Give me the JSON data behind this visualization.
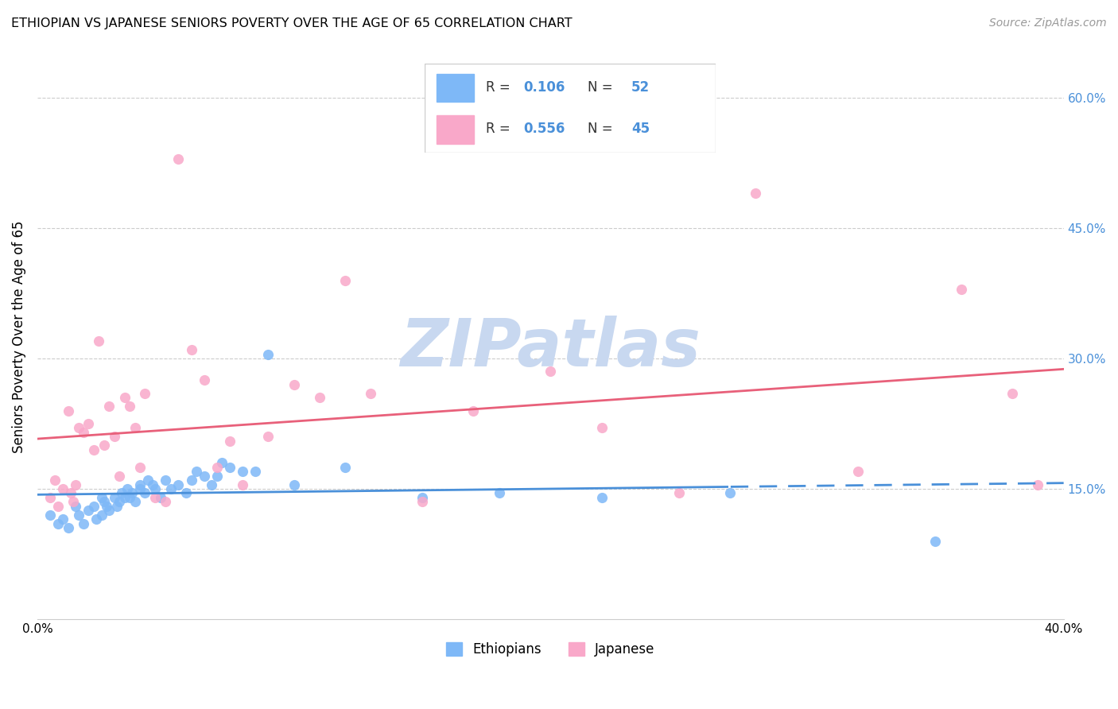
{
  "title": "ETHIOPIAN VS JAPANESE SENIORS POVERTY OVER THE AGE OF 65 CORRELATION CHART",
  "source": "Source: ZipAtlas.com",
  "ylabel": "Seniors Poverty Over the Age of 65",
  "xlabel_ethiopians": "Ethiopians",
  "xlabel_japanese": "Japanese",
  "xmin": 0.0,
  "xmax": 0.4,
  "ymin": 0.0,
  "ymax": 0.65,
  "yticks": [
    0.15,
    0.3,
    0.45,
    0.6
  ],
  "ytick_labels": [
    "15.0%",
    "30.0%",
    "45.0%",
    "60.0%"
  ],
  "ethiopian_color": "#7eb8f7",
  "japanese_color": "#f9a8c9",
  "ethiopian_line_color": "#4a90d9",
  "japanese_line_color": "#e8607a",
  "watermark": "ZIPatlas",
  "watermark_color": "#c8d8f0",
  "legend_value_color": "#4a90d9",
  "legend_label_color": "#333333",
  "source_color": "#999999",
  "ethiopians_x": [
    0.005,
    0.008,
    0.01,
    0.012,
    0.015,
    0.016,
    0.018,
    0.02,
    0.022,
    0.023,
    0.025,
    0.025,
    0.026,
    0.027,
    0.028,
    0.03,
    0.031,
    0.032,
    0.033,
    0.034,
    0.035,
    0.036,
    0.037,
    0.038,
    0.04,
    0.04,
    0.042,
    0.043,
    0.045,
    0.046,
    0.048,
    0.05,
    0.052,
    0.055,
    0.058,
    0.06,
    0.062,
    0.065,
    0.068,
    0.07,
    0.072,
    0.075,
    0.08,
    0.085,
    0.09,
    0.1,
    0.12,
    0.15,
    0.18,
    0.22,
    0.27,
    0.35
  ],
  "ethiopians_y": [
    0.12,
    0.11,
    0.115,
    0.105,
    0.13,
    0.12,
    0.11,
    0.125,
    0.13,
    0.115,
    0.14,
    0.12,
    0.135,
    0.13,
    0.125,
    0.14,
    0.13,
    0.135,
    0.145,
    0.14,
    0.15,
    0.14,
    0.145,
    0.135,
    0.155,
    0.15,
    0.145,
    0.16,
    0.155,
    0.15,
    0.14,
    0.16,
    0.15,
    0.155,
    0.145,
    0.16,
    0.17,
    0.165,
    0.155,
    0.165,
    0.18,
    0.175,
    0.17,
    0.17,
    0.305,
    0.155,
    0.175,
    0.14,
    0.145,
    0.14,
    0.145,
    0.09
  ],
  "japanese_x": [
    0.005,
    0.007,
    0.008,
    0.01,
    0.012,
    0.013,
    0.014,
    0.015,
    0.016,
    0.018,
    0.02,
    0.022,
    0.024,
    0.026,
    0.028,
    0.03,
    0.032,
    0.034,
    0.036,
    0.038,
    0.04,
    0.042,
    0.046,
    0.05,
    0.055,
    0.06,
    0.065,
    0.07,
    0.075,
    0.08,
    0.09,
    0.1,
    0.11,
    0.12,
    0.13,
    0.15,
    0.17,
    0.2,
    0.22,
    0.25,
    0.28,
    0.32,
    0.36,
    0.38,
    0.39
  ],
  "japanese_y": [
    0.14,
    0.16,
    0.13,
    0.15,
    0.24,
    0.145,
    0.135,
    0.155,
    0.22,
    0.215,
    0.225,
    0.195,
    0.32,
    0.2,
    0.245,
    0.21,
    0.165,
    0.255,
    0.245,
    0.22,
    0.175,
    0.26,
    0.14,
    0.135,
    0.53,
    0.31,
    0.275,
    0.175,
    0.205,
    0.155,
    0.21,
    0.27,
    0.255,
    0.39,
    0.26,
    0.135,
    0.24,
    0.285,
    0.22,
    0.145,
    0.49,
    0.17,
    0.38,
    0.26,
    0.155
  ]
}
